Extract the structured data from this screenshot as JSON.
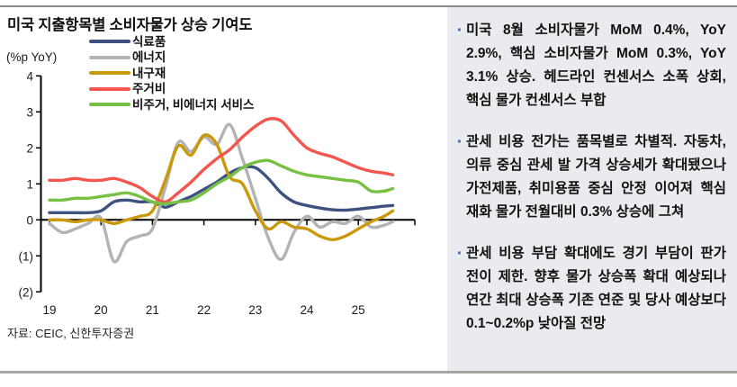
{
  "figure": {
    "title": "미국 지출항목별 소비자물가 상승 기여도",
    "unit_label": "(%p YoY)",
    "source": "자료: CEIC, 신한투자증권"
  },
  "chart_data": {
    "type": "line",
    "title": "미국 지출항목별 소비자물가 상승 기여도",
    "ylabel": "(%p YoY)",
    "ylim": [
      -2,
      4
    ],
    "xlim": [
      2018.85,
      2026.1
    ],
    "grid": false,
    "legend_position": "top-left",
    "x_tick_labels": [
      "19",
      "20",
      "21",
      "22",
      "23",
      "24",
      "25"
    ],
    "x_tick_values": [
      2019,
      2020,
      2021,
      2022,
      2023,
      2024,
      2025
    ],
    "y_tick_labels": [
      "4",
      "3",
      "2",
      "1",
      "0",
      "(1)",
      "(2)"
    ],
    "y_tick_values": [
      4,
      3,
      2,
      1,
      0,
      -1,
      -2
    ],
    "x": [
      2019.0,
      2019.25,
      2019.5,
      2019.75,
      2020.0,
      2020.25,
      2020.5,
      2020.75,
      2021.0,
      2021.25,
      2021.5,
      2021.75,
      2022.0,
      2022.25,
      2022.5,
      2022.75,
      2023.0,
      2023.25,
      2023.5,
      2023.75,
      2024.0,
      2024.25,
      2024.5,
      2024.75,
      2025.0,
      2025.25,
      2025.5,
      2025.67
    ],
    "series": [
      {
        "name": "식료품",
        "key": "food",
        "color": "#3f5181",
        "values": [
          0.2,
          0.2,
          0.2,
          0.2,
          0.25,
          0.5,
          0.55,
          0.5,
          0.5,
          0.35,
          0.5,
          0.65,
          0.85,
          1.05,
          1.3,
          1.45,
          1.45,
          1.15,
          0.75,
          0.5,
          0.4,
          0.33,
          0.28,
          0.27,
          0.3,
          0.34,
          0.38,
          0.4
        ]
      },
      {
        "name": "에너지",
        "key": "energy",
        "color": "#b3b3b3",
        "values": [
          -0.1,
          -0.35,
          -0.25,
          -0.1,
          0.05,
          -1.15,
          -0.6,
          -0.45,
          -0.25,
          0.9,
          2.15,
          1.9,
          2.3,
          2.1,
          2.65,
          1.7,
          0.6,
          -0.5,
          -1.1,
          -0.35,
          0.1,
          -0.2,
          -0.05,
          -0.1,
          0.1,
          -0.2,
          -0.15,
          -0.05
        ]
      },
      {
        "name": "내구재",
        "key": "durables",
        "color": "#c9990a",
        "values": [
          0.0,
          0.0,
          -0.05,
          0.0,
          0.0,
          -0.1,
          0.0,
          0.1,
          0.25,
          1.1,
          2.05,
          1.8,
          2.35,
          2.1,
          1.2,
          1.0,
          0.25,
          -0.25,
          -0.05,
          -0.2,
          -0.25,
          -0.45,
          -0.55,
          -0.45,
          -0.25,
          -0.05,
          0.1,
          0.25
        ]
      },
      {
        "name": "주거비",
        "key": "housing",
        "color": "#f4564e",
        "values": [
          1.1,
          1.1,
          1.15,
          1.1,
          1.1,
          1.15,
          1.05,
          0.9,
          0.65,
          0.5,
          0.75,
          1.05,
          1.4,
          1.7,
          1.95,
          2.3,
          2.6,
          2.8,
          2.75,
          2.35,
          2.0,
          1.85,
          1.75,
          1.6,
          1.45,
          1.35,
          1.3,
          1.25
        ]
      },
      {
        "name": "비주거, 비에너지 서비스",
        "key": "non-housing-services",
        "color": "#76c043",
        "values": [
          0.55,
          0.55,
          0.6,
          0.6,
          0.65,
          0.7,
          0.75,
          0.65,
          0.5,
          0.45,
          0.5,
          0.55,
          0.75,
          1.0,
          1.2,
          1.45,
          1.6,
          1.65,
          1.5,
          1.35,
          1.25,
          1.2,
          1.15,
          1.1,
          1.05,
          0.8,
          0.8,
          0.87
        ]
      }
    ]
  },
  "sidebar": {
    "bullet_glyph": "·",
    "bullet_color": "#4472c4",
    "bullets": [
      "미국 8월 소비자물가 MoM 0.4%, YoY 2.9%, 핵심 소비자물가 MoM 0.3%, YoY 3.1% 상승. 헤드라인 컨센서스 소폭 상회, 핵심 물가 컨센서스 부합",
      "관세 비용 전가는 품목별로 차별적. 자동차, 의류 중심 관세 발 가격 상승세가 확대됐으나 가전제품, 취미용품 중심 안정 이어져 핵심 재화 물가 전월대비 0.3% 상승에 그쳐",
      "관세 비용 부담 확대에도 경기 부담이 판가 전이 제한. 향후 물가 상승폭 확대 예상되나 연간 최대 상승폭 기존 연준 및 당사 예상보다 0.1~0.2%p 낮아질 전망"
    ]
  }
}
